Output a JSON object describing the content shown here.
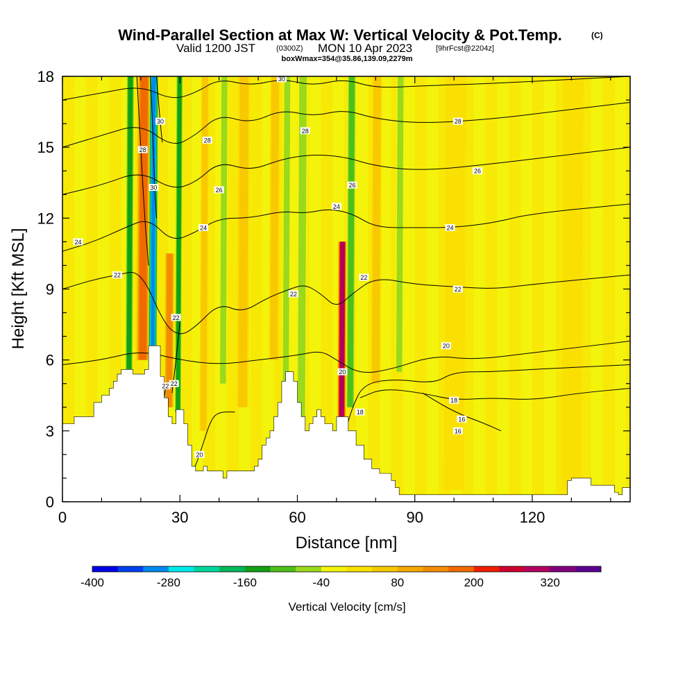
{
  "header": {
    "title": "Wind-Parallel Section at Max W: Vertical Velocity & Pot.Temp.",
    "copyright": "(C)",
    "valid_prefix": "Valid 1200 JST",
    "valid_utc": "(0300Z)",
    "valid_date": "MON 10 Apr 2023",
    "forecast": "[9hrFcst@2204z]",
    "box_info": "boxWmax=354@35.86,139.09,2279m"
  },
  "colors": {
    "terrain": "#ffffff",
    "background_field": "#f3f30c",
    "contour": "#000000"
  },
  "colorbar": {
    "label": "Vertical Velocity [cm/s]",
    "tick_labels": [
      "-400",
      "-280",
      "-160",
      "-40",
      "80",
      "200",
      "320"
    ],
    "bins": [
      -400,
      -360,
      -320,
      -280,
      -240,
      -200,
      -160,
      -120,
      -80,
      -40,
      0,
      40,
      80,
      120,
      160,
      200,
      240,
      280,
      320,
      360
    ],
    "colors": [
      "#0000e6",
      "#0040f0",
      "#0088f0",
      "#00e8e8",
      "#00d49c",
      "#00b85a",
      "#13a013",
      "#4cc01a",
      "#9ad91c",
      "#f3f30c",
      "#fae000",
      "#f8c800",
      "#f4a800",
      "#f28c00",
      "#f06a00",
      "#ee2000",
      "#cc0030",
      "#b00060",
      "#80007c",
      "#5a0090"
    ]
  },
  "chart_data": {
    "type": "heatmap",
    "xlabel": "Distance [nm]",
    "ylabel": "Height [Kft MSL]",
    "xlim": [
      0,
      145
    ],
    "ylim": [
      0,
      18
    ],
    "xticks": [
      0,
      30,
      60,
      90,
      120
    ],
    "yticks": [
      0,
      3,
      6,
      9,
      12,
      15,
      18
    ],
    "terrain_kft": [
      [
        0,
        3.3
      ],
      [
        3,
        3.6
      ],
      [
        6,
        3.6
      ],
      [
        8,
        4.2
      ],
      [
        10,
        4.5
      ],
      [
        12,
        4.8
      ],
      [
        13,
        5.1
      ],
      [
        14,
        5.4
      ],
      [
        15,
        5.6
      ],
      [
        17,
        5.6
      ],
      [
        18,
        5.4
      ],
      [
        20,
        5.4
      ],
      [
        21,
        5.6
      ],
      [
        22,
        6.6
      ],
      [
        24,
        6.6
      ],
      [
        25,
        5.3
      ],
      [
        26,
        4.4
      ],
      [
        27,
        3.6
      ],
      [
        28,
        3.3
      ],
      [
        29,
        3.9
      ],
      [
        30,
        3.9
      ],
      [
        31,
        3.3
      ],
      [
        32,
        2.4
      ],
      [
        33,
        1.5
      ],
      [
        34,
        1.3
      ],
      [
        35,
        1.3
      ],
      [
        36,
        1.5
      ],
      [
        37,
        1.3
      ],
      [
        38,
        1.3
      ],
      [
        40,
        1.3
      ],
      [
        41,
        1.0
      ],
      [
        42,
        1.3
      ],
      [
        46,
        1.3
      ],
      [
        48,
        1.3
      ],
      [
        49,
        1.5
      ],
      [
        50,
        1.8
      ],
      [
        51,
        2.4
      ],
      [
        52,
        2.7
      ],
      [
        53,
        3.0
      ],
      [
        54,
        3.6
      ],
      [
        55,
        4.2
      ],
      [
        56,
        5.1
      ],
      [
        57,
        5.5
      ],
      [
        58,
        5.5
      ],
      [
        59,
        5.1
      ],
      [
        60,
        4.2
      ],
      [
        61,
        3.6
      ],
      [
        62,
        3.0
      ],
      [
        63,
        3.3
      ],
      [
        64,
        3.6
      ],
      [
        65,
        3.9
      ],
      [
        66,
        3.6
      ],
      [
        67,
        3.3
      ],
      [
        69,
        3.0
      ],
      [
        70,
        3.6
      ],
      [
        72,
        3.6
      ],
      [
        73,
        3.0
      ],
      [
        75,
        2.4
      ],
      [
        77,
        1.8
      ],
      [
        79,
        1.4
      ],
      [
        81,
        1.2
      ],
      [
        83,
        1.2
      ],
      [
        84,
        0.9
      ],
      [
        85,
        0.6
      ],
      [
        86,
        0.3
      ],
      [
        90,
        0.3
      ],
      [
        128,
        0.3
      ],
      [
        129,
        0.9
      ],
      [
        130,
        1.0
      ],
      [
        134,
        1.0
      ],
      [
        135,
        0.7
      ],
      [
        137,
        0.7
      ],
      [
        140,
        0.7
      ],
      [
        141,
        0.4
      ],
      [
        142,
        0.3
      ],
      [
        143,
        0.6
      ],
      [
        145,
        0.6
      ]
    ],
    "updrafts": [
      {
        "x": 20.5,
        "base": 6.0,
        "top": 18,
        "half_width": 1.4,
        "value": 200
      },
      {
        "x": 27.2,
        "base": 4.0,
        "top": 10.5,
        "half_width": 1.0,
        "value": 160
      },
      {
        "x": 71.3,
        "base": 3.6,
        "top": 11,
        "half_width": 0.9,
        "value": 330
      },
      {
        "x": 36.0,
        "base": 3.0,
        "top": 18,
        "half_width": 0.8,
        "value": 60
      },
      {
        "x": 46.0,
        "base": 4.0,
        "top": 18,
        "half_width": 1.2,
        "value": 60
      },
      {
        "x": 54.0,
        "base": 6.0,
        "top": 18,
        "half_width": 1.0,
        "value": 60
      },
      {
        "x": 80.0,
        "base": 5.0,
        "top": 18,
        "half_width": 1.0,
        "value": 60
      },
      {
        "x": 100.0,
        "base": 0.5,
        "top": 18,
        "half_width": 2.0,
        "value": 40
      },
      {
        "x": 130.0,
        "base": 0.5,
        "top": 18,
        "half_width": 2.0,
        "value": 40
      }
    ],
    "downdrafts": [
      {
        "x": 23.0,
        "base": 5.5,
        "top": 18,
        "half_width": 0.9,
        "value": -300
      },
      {
        "x": 17.0,
        "base": 5.5,
        "top": 18,
        "half_width": 0.8,
        "value": -140
      },
      {
        "x": 29.5,
        "base": 3.8,
        "top": 18,
        "half_width": 0.7,
        "value": -140
      },
      {
        "x": 41.0,
        "base": 5.0,
        "top": 18,
        "half_width": 0.8,
        "value": -80
      },
      {
        "x": 57.0,
        "base": 3.5,
        "top": 18,
        "half_width": 0.8,
        "value": -60
      },
      {
        "x": 61.0,
        "base": 3.0,
        "top": 18,
        "half_width": 1.0,
        "value": -60
      },
      {
        "x": 73.5,
        "base": 4.0,
        "top": 18,
        "half_width": 0.9,
        "value": -100
      },
      {
        "x": 86.0,
        "base": 5.5,
        "top": 18,
        "half_width": 0.8,
        "value": -60
      }
    ],
    "isentropes": [
      {
        "label": "16",
        "points": [
          [
            92,
            4.6
          ],
          [
            100,
            3.8
          ],
          [
            108,
            3.3
          ],
          [
            112,
            3.0
          ]
        ],
        "label_at": [
          102,
          3.5
        ]
      },
      {
        "label": "18",
        "points": [
          [
            76,
            4.4
          ],
          [
            82,
            4.8
          ],
          [
            92,
            4.6
          ],
          [
            100,
            4.3
          ],
          [
            110,
            4.4
          ],
          [
            120,
            4.3
          ],
          [
            132,
            4.6
          ],
          [
            145,
            4.8
          ]
        ],
        "label_at": [
          100,
          4.3
        ]
      },
      {
        "label": "18",
        "points": [
          [
            72,
            2.8
          ],
          [
            74,
            4.0
          ],
          [
            77,
            5.0
          ],
          [
            85,
            5.2
          ],
          [
            95,
            5.0
          ],
          [
            100,
            5.5
          ],
          [
            110,
            5.5
          ],
          [
            120,
            5.6
          ],
          [
            145,
            5.8
          ]
        ],
        "label_at": [
          76,
          3.8
        ]
      },
      {
        "label": "20",
        "points": [
          [
            0,
            5.8
          ],
          [
            10,
            6.0
          ],
          [
            20,
            6.4
          ],
          [
            30,
            6.0
          ],
          [
            40,
            5.8
          ],
          [
            50,
            6.0
          ],
          [
            60,
            6.2
          ],
          [
            66,
            6.4
          ],
          [
            70,
            6.0
          ],
          [
            76,
            5.4
          ],
          [
            84,
            5.6
          ],
          [
            95,
            6.2
          ],
          [
            105,
            6.0
          ],
          [
            120,
            6.3
          ],
          [
            145,
            6.8
          ]
        ],
        "label_at": [
          98,
          6.6
        ]
      },
      {
        "label": "20",
        "points": [
          [
            32,
            0.9
          ],
          [
            34,
            1.5
          ],
          [
            36,
            2.5
          ],
          [
            38,
            3.5
          ],
          [
            40,
            3.8
          ],
          [
            44,
            3.8
          ]
        ],
        "label_at": [
          35,
          2.0
        ]
      },
      {
        "label": "22",
        "points": [
          [
            0,
            9.0
          ],
          [
            8,
            9.4
          ],
          [
            14,
            9.6
          ],
          [
            20,
            9.8
          ],
          [
            26,
            7.5
          ],
          [
            30,
            7.0
          ],
          [
            34,
            7.4
          ],
          [
            40,
            8.4
          ],
          [
            46,
            8.0
          ],
          [
            52,
            8.6
          ],
          [
            58,
            9.0
          ],
          [
            62,
            9.2
          ],
          [
            66,
            8.8
          ],
          [
            70,
            8.2
          ],
          [
            74,
            8.8
          ],
          [
            80,
            9.5
          ],
          [
            90,
            9.2
          ],
          [
            100,
            9.1
          ],
          [
            110,
            9.0
          ],
          [
            120,
            9.2
          ],
          [
            145,
            9.6
          ]
        ],
        "label_at": [
          14,
          9.6
        ]
      },
      {
        "label": "22",
        "points": [
          [
            28,
            4.6
          ],
          [
            29,
            6.0
          ],
          [
            30,
            7.6
          ]
        ],
        "label_at": [
          29,
          7.8
        ]
      },
      {
        "label": "22",
        "points": [
          [
            26,
            4.4
          ],
          [
            26.5,
            5.0
          ]
        ],
        "label_at": [
          26.3,
          4.9
        ]
      },
      {
        "label": "24",
        "points": [
          [
            0,
            10.6
          ],
          [
            8,
            11.0
          ],
          [
            16,
            11.6
          ],
          [
            22,
            12.0
          ],
          [
            28,
            11.0
          ],
          [
            34,
            11.4
          ],
          [
            40,
            12.0
          ],
          [
            48,
            12.0
          ],
          [
            56,
            12.3
          ],
          [
            62,
            12.2
          ],
          [
            68,
            12.4
          ],
          [
            74,
            12.2
          ],
          [
            80,
            11.6
          ],
          [
            90,
            11.6
          ],
          [
            100,
            11.6
          ],
          [
            110,
            11.8
          ],
          [
            120,
            12.2
          ],
          [
            145,
            12.6
          ]
        ],
        "label_at": [
          4,
          11.0
        ]
      },
      {
        "label": "26",
        "points": [
          [
            0,
            13.0
          ],
          [
            10,
            13.4
          ],
          [
            20,
            14.0
          ],
          [
            28,
            13.2
          ],
          [
            34,
            13.5
          ],
          [
            40,
            14.4
          ],
          [
            48,
            14.0
          ],
          [
            56,
            14.5
          ],
          [
            64,
            14.7
          ],
          [
            72,
            14.6
          ],
          [
            80,
            14.2
          ],
          [
            92,
            14.0
          ],
          [
            110,
            14.3
          ],
          [
            125,
            14.6
          ],
          [
            145,
            15.0
          ]
        ],
        "label_at": [
          40,
          13.2
        ]
      },
      {
        "label": "28",
        "points": [
          [
            0,
            15.0
          ],
          [
            10,
            15.5
          ],
          [
            20,
            16.0
          ],
          [
            28,
            15.0
          ],
          [
            34,
            15.5
          ],
          [
            40,
            16.4
          ],
          [
            48,
            16.0
          ],
          [
            56,
            16.6
          ],
          [
            64,
            16.3
          ],
          [
            72,
            16.6
          ],
          [
            80,
            16.2
          ],
          [
            92,
            16.0
          ],
          [
            110,
            16.2
          ],
          [
            125,
            16.5
          ],
          [
            145,
            16.9
          ]
        ],
        "label_at": [
          37,
          15.3
        ]
      },
      {
        "label": "30",
        "points": [
          [
            0,
            17.0
          ],
          [
            10,
            17.3
          ],
          [
            20,
            17.6
          ],
          [
            28,
            17.0
          ],
          [
            34,
            17.3
          ],
          [
            40,
            17.9
          ],
          [
            48,
            17.6
          ],
          [
            56,
            17.9
          ],
          [
            64,
            17.6
          ],
          [
            72,
            17.9
          ],
          [
            80,
            17.5
          ],
          [
            92,
            17.6
          ],
          [
            110,
            17.7
          ],
          [
            145,
            18.0
          ]
        ],
        "label_at": [
          56,
          17.9
        ]
      },
      {
        "label": "28",
        "points": [
          [
            19,
            18
          ],
          [
            20,
            15.0
          ],
          [
            21,
            12.0
          ],
          [
            22,
            10.0
          ]
        ],
        "label_at": [
          20.5,
          14.9
        ]
      },
      {
        "label": "30",
        "points": [
          [
            22.5,
            18
          ],
          [
            23,
            16.0
          ],
          [
            23.5,
            13.5
          ],
          [
            24,
            12.0
          ]
        ],
        "label_at": [
          23.3,
          13.3
        ]
      },
      {
        "label": "30",
        "points": [
          [
            24,
            18
          ],
          [
            25,
            16.0
          ],
          [
            25.5,
            15.2
          ]
        ],
        "label_at": [
          25,
          16.1
        ]
      }
    ],
    "notable_labels": [
      {
        "text": "28",
        "x": 62,
        "y": 15.7
      },
      {
        "text": "26",
        "x": 74,
        "y": 13.4
      },
      {
        "text": "24",
        "x": 70,
        "y": 12.5
      },
      {
        "text": "22",
        "x": 77,
        "y": 9.5
      },
      {
        "text": "22",
        "x": 101,
        "y": 9.0
      },
      {
        "text": "24",
        "x": 99,
        "y": 11.6
      },
      {
        "text": "26",
        "x": 106,
        "y": 14.0
      },
      {
        "text": "28",
        "x": 101,
        "y": 16.1
      },
      {
        "text": "22",
        "x": 59,
        "y": 8.8
      },
      {
        "text": "24",
        "x": 36,
        "y": 11.6
      },
      {
        "text": "22",
        "x": 28.5,
        "y": 5.0
      },
      {
        "text": "20",
        "x": 71.5,
        "y": 5.5
      },
      {
        "text": "16",
        "x": 101,
        "y": 3.0
      }
    ]
  }
}
